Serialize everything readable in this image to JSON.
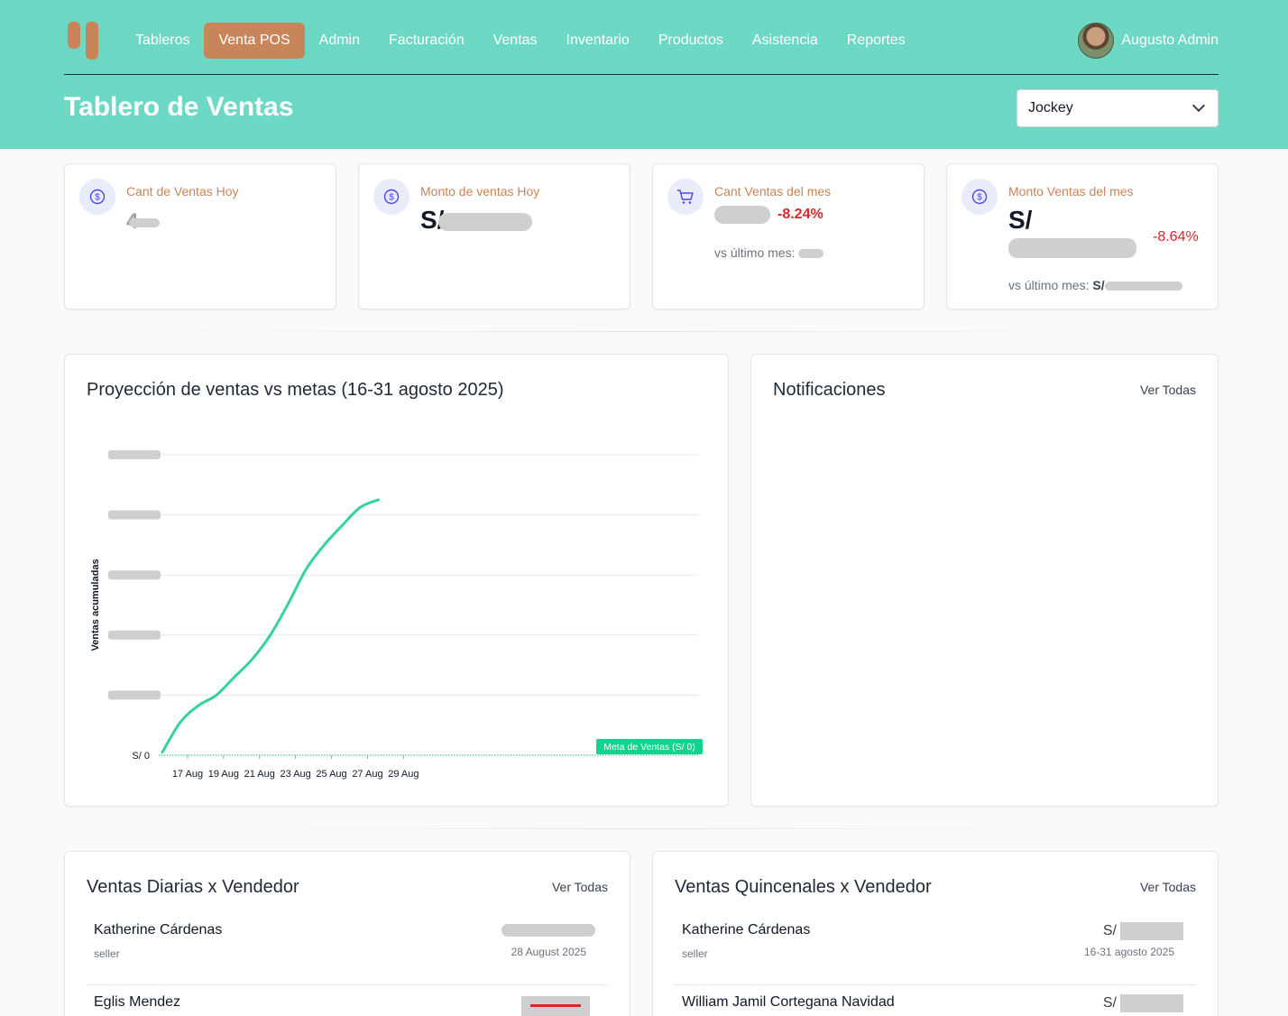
{
  "nav": {
    "items": [
      "Tableros",
      "Venta POS",
      "Admin",
      "Facturación",
      "Ventas",
      "Inventario",
      "Productos",
      "Asistencia",
      "Reportes"
    ],
    "active_index": 1,
    "user_name": "Augusto Admin"
  },
  "header": {
    "title": "Tablero de Ventas",
    "store_selected": "Jockey"
  },
  "stats": [
    {
      "label": "Cant de Ventas Hoy",
      "value": "4",
      "icon": "dollar-icon"
    },
    {
      "label": "Monto de ventas Hoy",
      "value": "S/",
      "icon": "dollar-icon"
    },
    {
      "label": "Cant Ventas del mes",
      "value": "",
      "delta": "-8.24%",
      "compare_label": "vs último mes:",
      "compare_value": "",
      "icon": "cart-icon"
    },
    {
      "label": "Monto Ventas del mes",
      "value": "S/",
      "delta": "-8.64%",
      "compare_label": "vs último mes:",
      "compare_value": "S/",
      "icon": "dollar-icon"
    }
  ],
  "projection": {
    "title": "Proyección de ventas vs metas (16-31 agosto 2025)",
    "ylabel": "Ventas acumuladas",
    "goal_label": "Meta de Ventas (S/ 0)"
  },
  "chart_data": {
    "type": "line",
    "x": [
      "16 Aug",
      "17 Aug",
      "18 Aug",
      "19 Aug",
      "20 Aug",
      "21 Aug",
      "22 Aug",
      "23 Aug",
      "24 Aug",
      "25 Aug",
      "26 Aug",
      "27 Aug",
      "28 Aug"
    ],
    "series": [
      {
        "values": [
          0.2,
          2.2,
          3.3,
          4.0,
          5.2,
          6.4,
          8.0,
          10.1,
          12.4,
          14.0,
          15.3,
          16.5,
          17.0
        ]
      }
    ],
    "xticks": [
      "17 Aug",
      "19 Aug",
      "21 Aug",
      "23 Aug",
      "25 Aug",
      "27 Aug",
      "29 Aug"
    ],
    "yticks": [
      "S/ 0"
    ],
    "ylim": [
      0,
      20
    ],
    "goal_value": 0,
    "grid": true,
    "colors": {
      "line": "#34d399",
      "goal": "#10b981"
    }
  },
  "notifications": {
    "title": "Notificaciones",
    "link": "Ver Todas"
  },
  "daily": {
    "title": "Ventas Diarias x Vendedor",
    "link": "Ver Todas",
    "rows": [
      {
        "name": "Katherine Cárdenas",
        "role": "seller",
        "amount": "",
        "date": "28 August 2025"
      },
      {
        "name": "Eglis Mendez",
        "role": "",
        "amount": "",
        "date": ""
      }
    ]
  },
  "biweekly": {
    "title": "Ventas Quincenales x Vendedor",
    "link": "Ver Todas",
    "rows": [
      {
        "name": "Katherine Cárdenas",
        "role": "seller",
        "amount": "S/",
        "date": "16-31 agosto 2025"
      },
      {
        "name": "William Jamil Cortegana Navidad",
        "role": "",
        "amount": "S/",
        "date": ""
      }
    ]
  },
  "theme": {
    "header_bg": "#6dd8c4",
    "accent": "#c8855a",
    "negative": "#dc2626"
  }
}
